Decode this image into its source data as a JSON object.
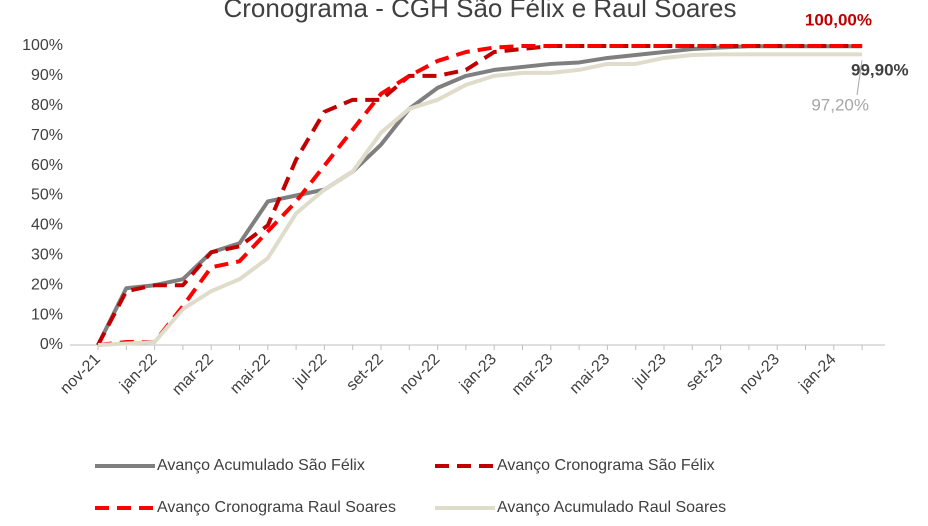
{
  "chart_data": {
    "type": "line",
    "title": "Cronograma - CGH São Félix e Raul Soares",
    "categories": [
      "nov-21",
      null,
      "jan-22",
      null,
      "mar-22",
      null,
      "mai-22",
      null,
      "jul-22",
      null,
      "set-22",
      null,
      "nov-22",
      null,
      "jan-23",
      null,
      "mar-23",
      null,
      "mai-23",
      null,
      "jul-23",
      null,
      "set-23",
      null,
      "nov-23",
      null,
      "jan-24",
      null
    ],
    "ylim": [
      0,
      100
    ],
    "yticks": [
      {
        "value": 0,
        "label": "0%"
      },
      {
        "value": 10,
        "label": "10%"
      },
      {
        "value": 20,
        "label": "20%"
      },
      {
        "value": 30,
        "label": "30%"
      },
      {
        "value": 40,
        "label": "40%"
      },
      {
        "value": 50,
        "label": "50%"
      },
      {
        "value": 60,
        "label": "60%"
      },
      {
        "value": 70,
        "label": "70%"
      },
      {
        "value": 80,
        "label": "80%"
      },
      {
        "value": 90,
        "label": "90%"
      },
      {
        "value": 100,
        "label": "100%"
      }
    ],
    "grid": false,
    "series": [
      {
        "name": "Avanço Acumulado São Félix",
        "color": "#7f7f7f",
        "dash": false,
        "values": [
          0,
          19,
          20,
          22,
          31,
          34,
          48,
          50,
          52,
          58,
          67,
          79,
          86,
          90,
          92,
          93,
          94,
          94.5,
          96,
          97,
          98,
          99,
          99.5,
          99.9,
          99.9,
          99.9,
          99.9,
          99.9
        ],
        "value_labels": [
          null,
          null,
          null,
          null,
          null,
          null,
          null,
          null,
          null,
          null,
          null,
          null,
          null,
          null,
          null,
          null,
          null,
          null,
          null,
          null,
          null,
          null,
          null,
          null,
          null,
          null,
          null,
          "99,90%"
        ]
      },
      {
        "name": "Avanço Cronograma São Félix",
        "color": "#c00000",
        "dash": true,
        "values": [
          0,
          18,
          20,
          20,
          31,
          33,
          40,
          62,
          78,
          82,
          82,
          90,
          90,
          92,
          98,
          99,
          100,
          100,
          100,
          100,
          100,
          100,
          100,
          100,
          100,
          100,
          100,
          100
        ],
        "value_labels": [
          null,
          null,
          null,
          null,
          null,
          null,
          null,
          null,
          null,
          null,
          null,
          null,
          null,
          null,
          null,
          null,
          null,
          null,
          null,
          null,
          null,
          null,
          null,
          null,
          null,
          null,
          null,
          "100,00%"
        ]
      },
      {
        "name": "Avanço Cronograma Raul Soares",
        "color": "#ff0000",
        "dash": true,
        "values": [
          0,
          1,
          1,
          13,
          26,
          28,
          38,
          48,
          60,
          72,
          84,
          90,
          95,
          98,
          99.5,
          100,
          100,
          100,
          100,
          100,
          100,
          100,
          100,
          100,
          100,
          100,
          100,
          100
        ]
      },
      {
        "name": "Avanço Acumulado Raul Soares",
        "color": "#e0dccb",
        "dash": false,
        "values": [
          0,
          0.5,
          1,
          12,
          18,
          22,
          29,
          44,
          52,
          58,
          71,
          79,
          82,
          87,
          90,
          91,
          91,
          92,
          94,
          94,
          96,
          97,
          97.2,
          97.2,
          97.2,
          97.2,
          97.2,
          97.2
        ],
        "value_labels": [
          null,
          null,
          null,
          null,
          null,
          null,
          null,
          null,
          null,
          null,
          null,
          null,
          null,
          null,
          null,
          null,
          null,
          null,
          null,
          null,
          null,
          null,
          null,
          null,
          null,
          null,
          null,
          "97,20%"
        ]
      }
    ]
  }
}
